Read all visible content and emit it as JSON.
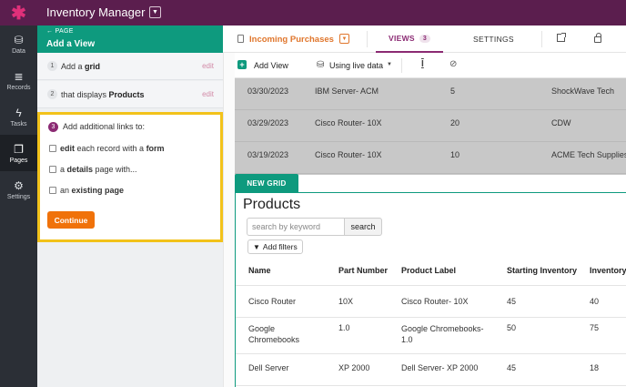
{
  "app": {
    "title": "Inventory Manager",
    "logo_icon": "asterisk-icon",
    "brand_color": "#5b1e4e"
  },
  "nav": [
    {
      "label": "Data",
      "icon": "data-icon"
    },
    {
      "label": "Records",
      "icon": "records-icon"
    },
    {
      "label": "Tasks",
      "icon": "bolt-icon"
    },
    {
      "label": "Pages",
      "icon": "pages-icon",
      "active": true
    },
    {
      "label": "Settings",
      "icon": "gear-icon"
    }
  ],
  "panel": {
    "back_label": "← PAGE",
    "title": "Add a View",
    "steps": [
      {
        "num": "1",
        "text_pre": "Add a ",
        "text_bold": "grid",
        "edit": "edit"
      },
      {
        "num": "2",
        "text_pre": "that displays ",
        "text_bold": "Products",
        "edit": "edit"
      }
    ],
    "step3": {
      "num": "3",
      "title": "Add additional links to:",
      "options": [
        {
          "pre": "",
          "b1": "edit",
          "mid": " each record with a ",
          "b2": "form"
        },
        {
          "pre": "a ",
          "b1": "details",
          "mid": " page with...",
          "b2": ""
        },
        {
          "pre": "an ",
          "b1": "existing page",
          "mid": "",
          "b2": ""
        }
      ],
      "continue": "Continue"
    }
  },
  "pagehead": {
    "page_name": "Incoming Purchases",
    "views_label": "VIEWS",
    "views_count": "3",
    "settings_label": "SETTINGS"
  },
  "toolbar": {
    "add_view": "Add View",
    "live_data": "Using live data"
  },
  "existing_rows": [
    [
      "03/30/2023",
      "IBM Server- ACM",
      "5",
      "ShockWave Tech"
    ],
    [
      "03/29/2023",
      "Cisco Router- 10X",
      "20",
      "CDW"
    ],
    [
      "03/19/2023",
      "Cisco Router- 10X",
      "10",
      "ACME Tech Supplies"
    ]
  ],
  "new_grid": {
    "tab_label": "NEW GRID",
    "title": "Products",
    "search_placeholder": "search by keyword",
    "search_button": "search",
    "filters_button": "Add filters",
    "columns": [
      "Name",
      "Part Number",
      "Product Label",
      "Starting Inventory",
      "Inventory"
    ],
    "rows": [
      [
        "Cisco Router",
        "10X",
        "Cisco Router- 10X",
        "45",
        "40"
      ],
      [
        "Google Chromebooks",
        "1.0",
        "Google Chromebooks- 1.0",
        "50",
        "75"
      ],
      [
        "Dell Server",
        "XP 2000",
        "Dell Server- XP 2000",
        "45",
        "18"
      ]
    ]
  }
}
